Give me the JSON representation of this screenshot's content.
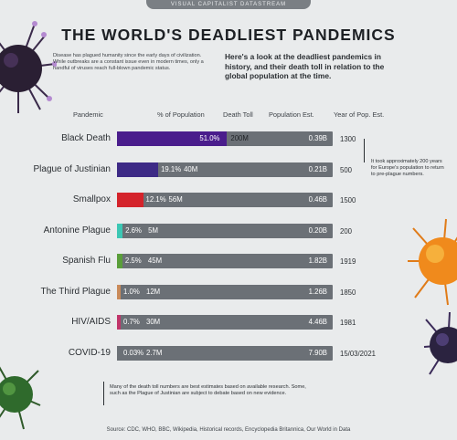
{
  "header": {
    "brand": "VISUAL CAPITALIST DATASTREAM",
    "title": "THE WORLD'S DEADLIEST PANDEMICS",
    "intro_left": "Disease has plagued humanity since the early days of civilization. While outbreaks are a constant issue even in modern times, only a handful of viruses reach full-blown pandemic status.",
    "intro_right": "Here's a look at the deadliest pandemics in history, and their death toll in relation to the global population at the time."
  },
  "columns": {
    "pandemic": "Pandemic",
    "pct": "% of Population",
    "deaths": "Death Toll",
    "pop": "Population Est.",
    "year": "Year of Pop. Est."
  },
  "colors": {
    "background": "#e9ebec",
    "track": "#6b7076",
    "black_death": "#4a1d8c",
    "justinian": "#3d2a86",
    "smallpox": "#d4232b",
    "antonine": "#3cc7b4",
    "spanish_flu": "#5a9e3a",
    "third_plague": "#c98a5a",
    "hiv": "#c0356a",
    "covid": "#6b7076"
  },
  "chart_data": {
    "type": "bar",
    "title": "THE WORLD'S DEADLIEST PANDEMICS",
    "xlabel": "% of Population",
    "ylabel": "Pandemic",
    "xlim": [
      0,
      100
    ],
    "series": [
      {
        "name": "% of Population",
        "values": [
          51.0,
          19.1,
          12.1,
          2.6,
          2.5,
          1.0,
          0.7,
          0.03
        ]
      }
    ],
    "categories": [
      "Black Death",
      "Plague of Justinian",
      "Smallpox",
      "Antonine Plague",
      "Spanish Flu",
      "The Third Plague",
      "HIV/AIDS",
      "COVID-19"
    ],
    "rows": [
      {
        "name": "Black Death",
        "pct": 51.0,
        "pct_label": "51.0%",
        "deaths_label": "200M",
        "pop_label": "0.39B",
        "year": "1300"
      },
      {
        "name": "Plague of Justinian",
        "pct": 19.1,
        "pct_label": "19.1%",
        "deaths_label": "40M",
        "pop_label": "0.21B",
        "year": "500"
      },
      {
        "name": "Smallpox",
        "pct": 12.1,
        "pct_label": "12.1%",
        "deaths_label": "56M",
        "pop_label": "0.46B",
        "year": "1500"
      },
      {
        "name": "Antonine Plague",
        "pct": 2.6,
        "pct_label": "2.6%",
        "deaths_label": "5M",
        "pop_label": "0.20B",
        "year": "200"
      },
      {
        "name": "Spanish Flu",
        "pct": 2.5,
        "pct_label": "2.5%",
        "deaths_label": "45M",
        "pop_label": "1.82B",
        "year": "1919"
      },
      {
        "name": "The Third Plague",
        "pct": 1.0,
        "pct_label": "1.0%",
        "deaths_label": "12M",
        "pop_label": "1.26B",
        "year": "1850"
      },
      {
        "name": "HIV/AIDS",
        "pct": 0.7,
        "pct_label": "0.7%",
        "deaths_label": "30M",
        "pop_label": "4.46B",
        "year": "1981"
      },
      {
        "name": "COVID-19",
        "pct": 0.03,
        "pct_label": "0.03%",
        "deaths_label": "2.7M",
        "pop_label": "7.90B",
        "year": "15/03/2021"
      }
    ]
  },
  "notes": {
    "right": "It took approximately 200 years for Europe's population to return to pre-plague numbers.",
    "bottom": "Many of the death toll numbers are best estimates based on available research. Some, such as the Plague of Justinian are subject to debate based on new evidence.",
    "source": "Source: CDC, WHO, BBC, Wikipedia, Historical records, Encyclopedia Britannica, Our World in Data"
  }
}
